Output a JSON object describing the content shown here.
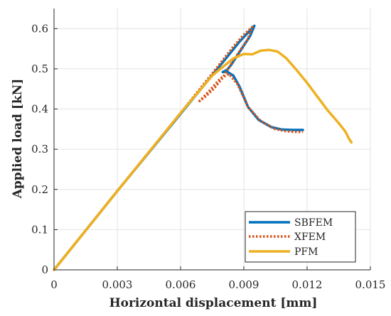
{
  "chart_data": {
    "type": "line",
    "xlabel": "Horizontal displacement [mm]",
    "ylabel": "Applied load [kN]",
    "xlim": [
      0,
      0.015
    ],
    "ylim": [
      0,
      0.65
    ],
    "xticks": [
      0,
      0.003,
      0.006,
      0.009,
      0.012,
      0.015
    ],
    "xtick_labels": [
      "0",
      "0.003",
      "0.006",
      "0.009",
      "0.012",
      "0.015"
    ],
    "yticks": [
      0,
      0.1,
      0.2,
      0.3,
      0.4,
      0.5,
      0.6
    ],
    "ytick_labels": [
      "0",
      "0.1",
      "0.2",
      "0.3",
      "0.4",
      "0.5",
      "0.6"
    ],
    "grid": true,
    "legend_position": "bottom-right",
    "series": [
      {
        "name": "SBFEM",
        "color": "#0072BD",
        "style": "solid",
        "x": [
          0,
          0.003,
          0.006,
          0.0075,
          0.0088,
          0.0095,
          0.0093,
          0.009,
          0.0087,
          0.0084,
          0.0082,
          0.008,
          0.0082,
          0.0085,
          0.0088,
          0.0092,
          0.0097,
          0.0103,
          0.0108,
          0.0113,
          0.0118
        ],
        "y": [
          0,
          0.196,
          0.388,
          0.484,
          0.568,
          0.607,
          0.582,
          0.558,
          0.534,
          0.51,
          0.497,
          0.492,
          0.493,
          0.483,
          0.455,
          0.405,
          0.373,
          0.355,
          0.349,
          0.348,
          0.348
        ]
      },
      {
        "name": "XFEM",
        "color": "#D95319",
        "style": "dotted",
        "x": [
          0,
          0.003,
          0.006,
          0.0075,
          0.0085,
          0.009,
          0.0094,
          0.0092,
          0.0088,
          0.0084,
          0.008,
          0.0076,
          0.0072,
          0.0069,
          0.0074,
          0.0079,
          0.0083,
          0.0087,
          0.0092,
          0.0098,
          0.0105,
          0.011,
          0.0114,
          0.0118
        ],
        "y": [
          0,
          0.196,
          0.39,
          0.488,
          0.555,
          0.585,
          0.604,
          0.574,
          0.544,
          0.512,
          0.478,
          0.452,
          0.432,
          0.42,
          0.447,
          0.477,
          0.487,
          0.462,
          0.405,
          0.37,
          0.35,
          0.345,
          0.343,
          0.343
        ]
      },
      {
        "name": "PFM",
        "color": "#EDB120",
        "style": "solid",
        "x": [
          0,
          0.003,
          0.006,
          0.0075,
          0.0085,
          0.009,
          0.0094,
          0.0098,
          0.0102,
          0.0106,
          0.011,
          0.0115,
          0.012,
          0.0125,
          0.013,
          0.0135,
          0.0138,
          0.014,
          0.0141
        ],
        "y": [
          0,
          0.196,
          0.39,
          0.483,
          0.526,
          0.537,
          0.536,
          0.545,
          0.547,
          0.543,
          0.527,
          0.497,
          0.465,
          0.43,
          0.395,
          0.365,
          0.345,
          0.325,
          0.317
        ]
      }
    ]
  }
}
